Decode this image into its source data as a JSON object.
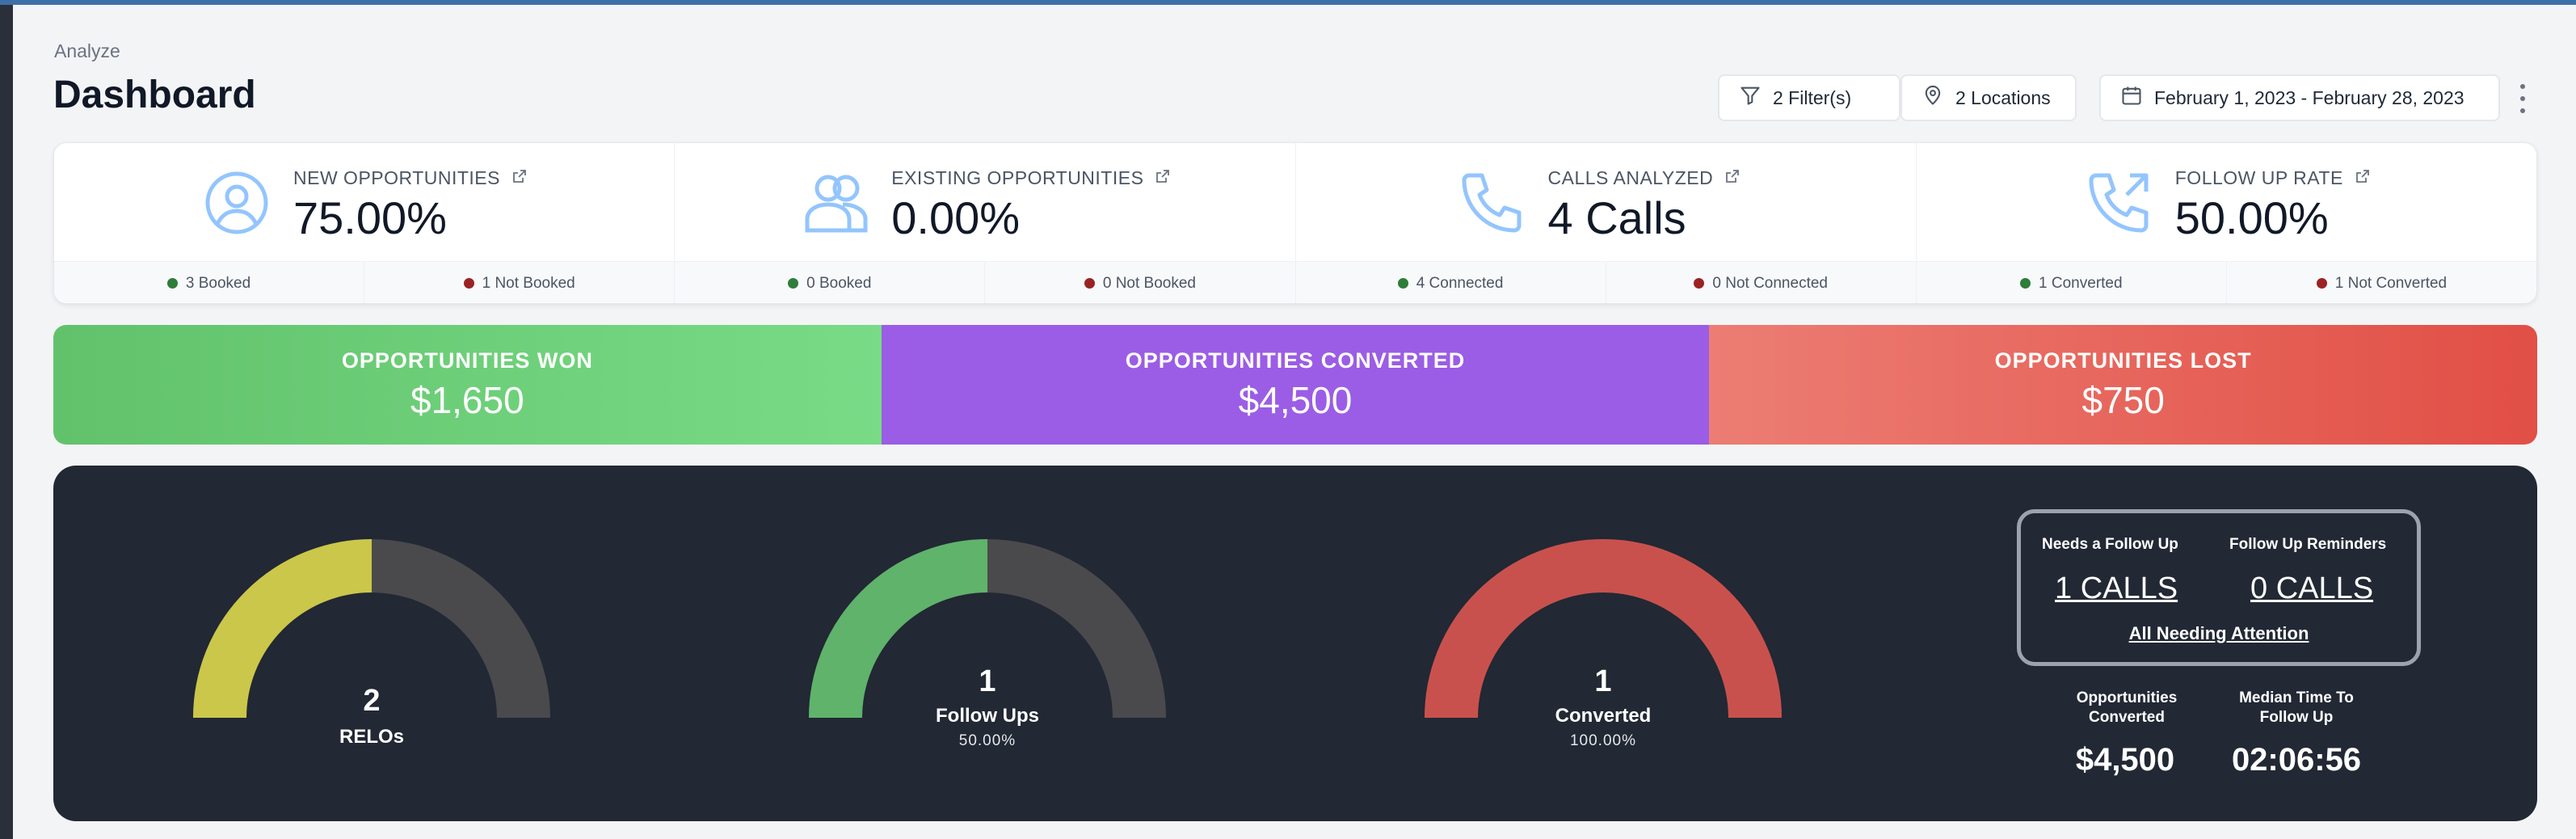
{
  "breadcrumb": "Analyze",
  "page_title": "Dashboard",
  "header": {
    "filters_label": "2 Filter(s)",
    "locations_label": "2 Locations",
    "date_range_label": "February 1, 2023 - February 28, 2023"
  },
  "stats": [
    {
      "label": "NEW OPPORTUNITIES",
      "value": "75.00%",
      "icon": "user-circle-icon",
      "foot_left": "3 Booked",
      "foot_right": "1 Not Booked"
    },
    {
      "label": "EXISTING OPPORTUNITIES",
      "value": "0.00%",
      "icon": "users-icon",
      "foot_left": "0 Booked",
      "foot_right": "0 Not Booked"
    },
    {
      "label": "CALLS ANALYZED",
      "value": "4 Calls",
      "icon": "phone-icon",
      "foot_left": "4 Connected",
      "foot_right": "0 Not Connected"
    },
    {
      "label": "FOLLOW UP RATE",
      "value": "50.00%",
      "icon": "phone-outgoing-icon",
      "foot_left": "1 Converted",
      "foot_right": "1 Not Converted"
    }
  ],
  "banners": {
    "won": {
      "label": "OPPORTUNITIES WON",
      "value": "$1,650"
    },
    "converted": {
      "label": "OPPORTUNITIES CONVERTED",
      "value": "$4,500"
    },
    "lost": {
      "label": "OPPORTUNITIES LOST",
      "value": "$750"
    }
  },
  "gauges": [
    {
      "number": "2",
      "label": "RELOs",
      "percent": "",
      "fill_fraction": 0.5,
      "color": "#cbc74a"
    },
    {
      "number": "1",
      "label": "Follow Ups",
      "percent": "50.00%",
      "fill_fraction": 0.5,
      "color": "#5fb36b"
    },
    {
      "number": "1",
      "label": "Converted",
      "percent": "100.00%",
      "fill_fraction": 1.0,
      "color": "#c9514d"
    }
  ],
  "attention": {
    "needs_follow_up_label": "Needs a Follow Up",
    "needs_follow_up_value": "1 CALLS",
    "reminders_label": "Follow Up Reminders",
    "reminders_value": "0 CALLS",
    "all_link": "All Needing Attention"
  },
  "metrics": {
    "converted_label_line1": "Opportunities",
    "converted_label_line2": "Converted",
    "converted_value": "$4,500",
    "median_label_line1": "Median Time To",
    "median_label_line2": "Follow Up",
    "median_value": "02:06:56"
  },
  "colors": {
    "accent_blue": "#93c5fd",
    "dot_green": "#2f7d3a",
    "dot_red": "#9b2222",
    "gauge_track": "#4a4a4d"
  }
}
